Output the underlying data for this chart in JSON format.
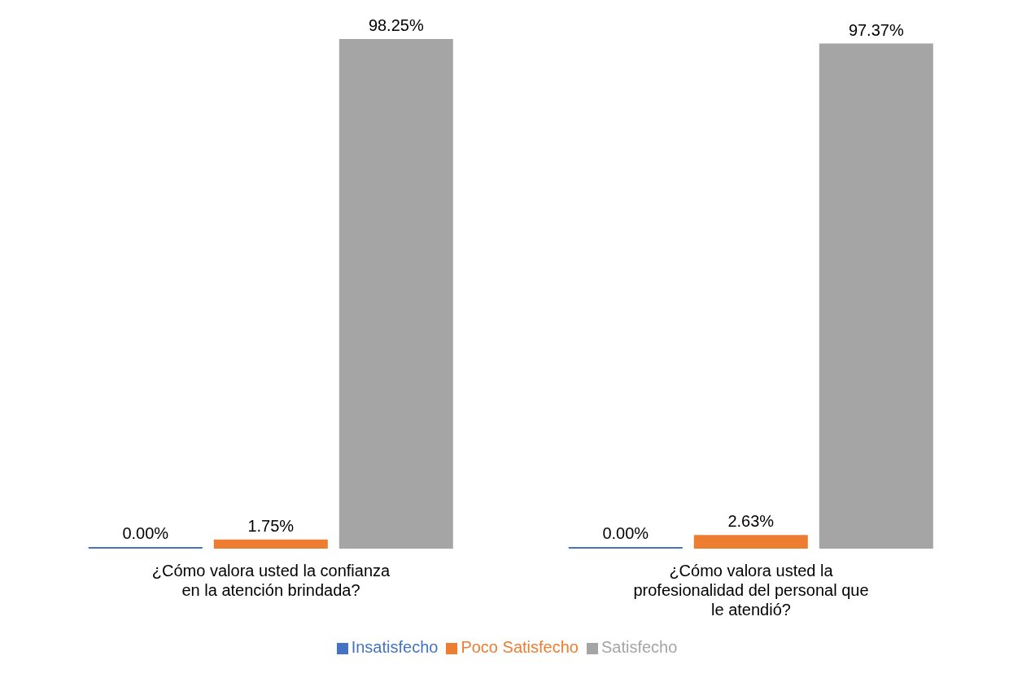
{
  "chart_data": {
    "type": "bar",
    "categories": [
      "¿Cómo valora usted la confianza en la atención brindada?",
      "¿Cómo valora usted la profesionalidad del personal que le atendió?"
    ],
    "series": [
      {
        "name": "Insatisfecho",
        "color": "#4472c4",
        "values": [
          0,
          0
        ],
        "value_labels": [
          "0.00%",
          "0.00%"
        ]
      },
      {
        "name": "Poco Satisfecho",
        "color": "#ed7d31",
        "values": [
          1.75,
          2.63
        ],
        "value_labels": [
          "1.75%",
          "2.63%"
        ]
      },
      {
        "name": "Satisfecho",
        "color": "#a5a5a5",
        "values": [
          98.25,
          97.37
        ],
        "value_labels": [
          "98.25%",
          "97.37%"
        ]
      }
    ],
    "legend": "bottom"
  }
}
